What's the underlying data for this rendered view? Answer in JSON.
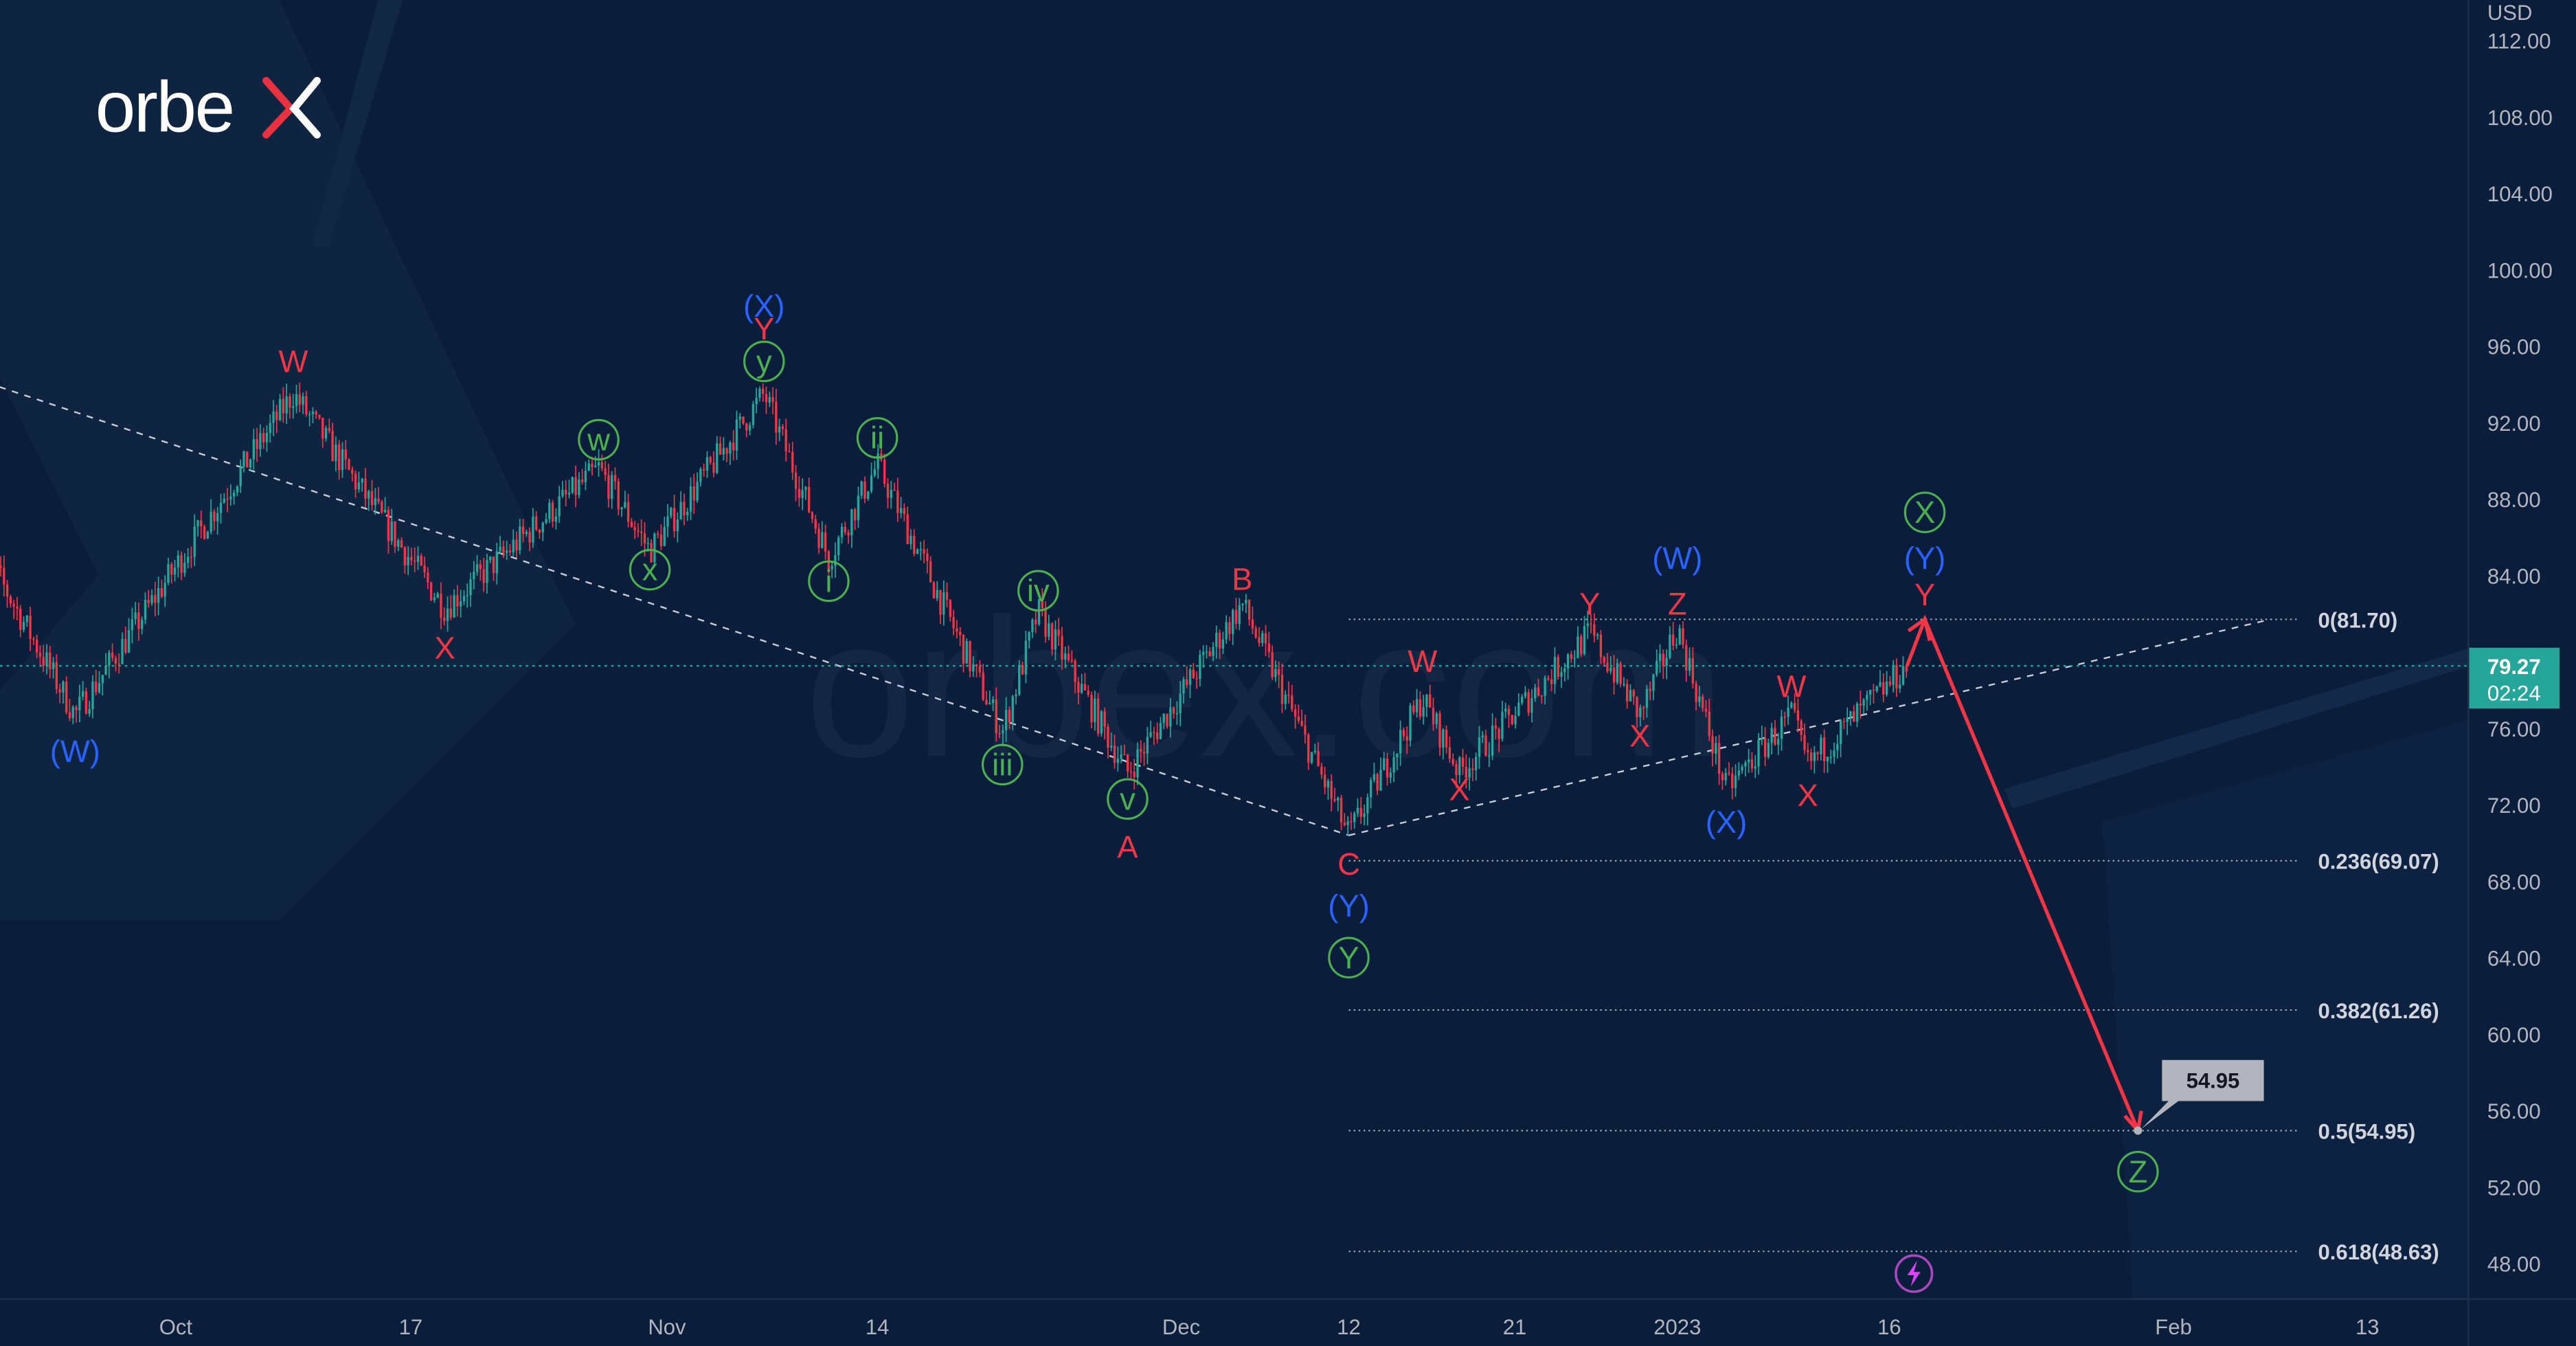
{
  "brand": {
    "logo_text": "orbex",
    "watermark": "orbex.com"
  },
  "colors": {
    "background": "#0a1e3c",
    "up_candle": "#26a69a",
    "down_candle": "#f23645",
    "wave_red": "#f23645",
    "wave_blue": "#2962ff",
    "wave_green": "#4caf50",
    "projection_arrow": "#f23645",
    "price_badge": "#26a69a",
    "callout": "#b2b5be"
  },
  "chart_data": {
    "type": "candlestick",
    "currency_label": "USD",
    "ylim": [
      46,
      112.5
    ],
    "y_ticks": [
      "112.00",
      "108.00",
      "104.00",
      "100.00",
      "96.00",
      "92.00",
      "88.00",
      "84.00",
      "76.00",
      "72.00",
      "68.00",
      "64.00",
      "60.00",
      "56.00",
      "52.00",
      "48.00"
    ],
    "x_ticks": [
      {
        "label": "Oct",
        "date": "2022-10-03"
      },
      {
        "label": "17",
        "date": "2022-10-17"
      },
      {
        "label": "Nov",
        "date": "2022-11-01"
      },
      {
        "label": "14",
        "date": "2022-11-14"
      },
      {
        "label": "Dec",
        "date": "2022-12-01"
      },
      {
        "label": "12",
        "date": "2022-12-12"
      },
      {
        "label": "21",
        "date": "2022-12-21"
      },
      {
        "label": "2023",
        "date": "2023-01-03"
      },
      {
        "label": "16",
        "date": "2023-01-16"
      },
      {
        "label": "Feb",
        "date": "2023-02-01"
      },
      {
        "label": "13",
        "date": "2023-02-13"
      }
    ],
    "price_path": [
      {
        "date": "2022-09-21",
        "price": 86.2
      },
      {
        "date": "2022-09-27",
        "price": 76.7
      },
      {
        "date": "2022-10-10",
        "price": 93.5
      },
      {
        "date": "2022-10-19",
        "price": 82.3
      },
      {
        "date": "2022-10-28",
        "price": 89.6
      },
      {
        "date": "2022-10-31",
        "price": 85.3
      },
      {
        "date": "2022-11-07",
        "price": 93.5
      },
      {
        "date": "2022-11-11",
        "price": 84.9
      },
      {
        "date": "2022-11-14",
        "price": 89.8
      },
      {
        "date": "2022-11-21",
        "price": 75.8
      },
      {
        "date": "2022-11-23",
        "price": 82.1
      },
      {
        "date": "2022-11-28",
        "price": 73.7
      },
      {
        "date": "2022-12-05",
        "price": 82.5
      },
      {
        "date": "2022-12-12",
        "price": 70.4
      },
      {
        "date": "2022-12-16",
        "price": 77.6
      },
      {
        "date": "2022-12-18",
        "price": 73.7
      },
      {
        "date": "2022-12-27",
        "price": 81.0
      },
      {
        "date": "2022-12-31",
        "price": 76.7
      },
      {
        "date": "2023-01-03",
        "price": 81.3
      },
      {
        "date": "2023-01-06",
        "price": 72.8
      },
      {
        "date": "2023-01-10",
        "price": 76.7
      },
      {
        "date": "2023-01-11",
        "price": 74.1
      },
      {
        "date": "2023-01-17",
        "price": 79.27
      }
    ],
    "current_price": {
      "value": "79.27",
      "countdown": "02:24"
    },
    "fib_levels": [
      {
        "label": "0(81.70)",
        "value": 81.7
      },
      {
        "label": "0.236(69.07)",
        "value": 69.07
      },
      {
        "label": "0.382(61.26)",
        "value": 61.26
      },
      {
        "label": "0.5(54.95)",
        "value": 54.95
      },
      {
        "label": "0.618(48.63)",
        "value": 48.63
      }
    ],
    "fib_start_date": "2022-12-12",
    "trendlines": [
      {
        "from": {
          "date": "2022-09-21",
          "price": 94.3
        },
        "to": {
          "date": "2022-12-12",
          "price": 70.4
        }
      },
      {
        "from": {
          "date": "2022-12-12",
          "price": 70.4
        },
        "to": {
          "date": "2023-02-07",
          "price": 81.7
        }
      }
    ],
    "projection": [
      {
        "date": "2023-01-17",
        "price": 79.27
      },
      {
        "date": "2023-01-18",
        "price": 81.7
      },
      {
        "date": "2023-01-30",
        "price": 54.95
      }
    ],
    "target_callout": {
      "text": "54.95"
    },
    "wave_labels": [
      {
        "text": "(W)",
        "style": "blue",
        "date": "2022-09-27",
        "price": 74.8
      },
      {
        "text": "W",
        "style": "red",
        "date": "2022-10-10",
        "price": 95.2
      },
      {
        "text": "X",
        "style": "red",
        "date": "2022-10-19",
        "price": 80.2
      },
      {
        "text": "w",
        "style": "green",
        "date": "2022-10-28",
        "price": 91.1
      },
      {
        "text": "x",
        "style": "green",
        "date": "2022-10-31",
        "price": 84.3
      },
      {
        "text": "(X)",
        "style": "blue",
        "date": "2022-11-07",
        "price": 98.1
      },
      {
        "text": "Y",
        "style": "red",
        "date": "2022-11-07",
        "price": 96.9
      },
      {
        "text": "y",
        "style": "green",
        "date": "2022-11-07",
        "price": 95.2
      },
      {
        "text": "i",
        "style": "green",
        "date": "2022-11-11",
        "price": 83.7
      },
      {
        "text": "ii",
        "style": "green",
        "date": "2022-11-14",
        "price": 91.2
      },
      {
        "text": "iii",
        "style": "green",
        "date": "2022-11-21",
        "price": 74.1
      },
      {
        "text": "iv",
        "style": "green",
        "date": "2022-11-23",
        "price": 83.2
      },
      {
        "text": "v",
        "style": "green",
        "date": "2022-11-28",
        "price": 72.3
      },
      {
        "text": "A",
        "style": "red",
        "date": "2022-11-28",
        "price": 69.8
      },
      {
        "text": "B",
        "style": "red",
        "date": "2022-12-05",
        "price": 83.8
      },
      {
        "text": "C",
        "style": "red",
        "date": "2022-12-12",
        "price": 68.9
      },
      {
        "text": "(Y)",
        "style": "blue",
        "date": "2022-12-12",
        "price": 66.7
      },
      {
        "text": "Y",
        "style": "green",
        "date": "2022-12-12",
        "price": 64.0
      },
      {
        "text": "W",
        "style": "red",
        "date": "2022-12-16",
        "price": 79.5
      },
      {
        "text": "X",
        "style": "red",
        "date": "2022-12-18",
        "price": 72.8
      },
      {
        "text": "Y",
        "style": "red",
        "date": "2022-12-27",
        "price": 82.5
      },
      {
        "text": "X",
        "style": "red",
        "date": "2022-12-31",
        "price": 75.6
      },
      {
        "text": "(W)",
        "style": "blue",
        "date": "2023-01-03",
        "price": 84.9
      },
      {
        "text": "Z",
        "style": "red",
        "date": "2023-01-03",
        "price": 82.5
      },
      {
        "text": "(X)",
        "style": "blue",
        "date": "2023-01-06",
        "price": 71.1
      },
      {
        "text": "W",
        "style": "red",
        "date": "2023-01-10",
        "price": 78.2
      },
      {
        "text": "X",
        "style": "red",
        "date": "2023-01-11",
        "price": 72.5
      },
      {
        "text": "X",
        "style": "green",
        "date": "2023-01-18",
        "price": 87.3
      },
      {
        "text": "(Y)",
        "style": "blue",
        "date": "2023-01-18",
        "price": 84.9
      },
      {
        "text": "Y",
        "style": "red",
        "date": "2023-01-18",
        "price": 83.0
      },
      {
        "text": "Z",
        "style": "green",
        "date": "2023-01-30",
        "price": 52.8
      }
    ]
  }
}
